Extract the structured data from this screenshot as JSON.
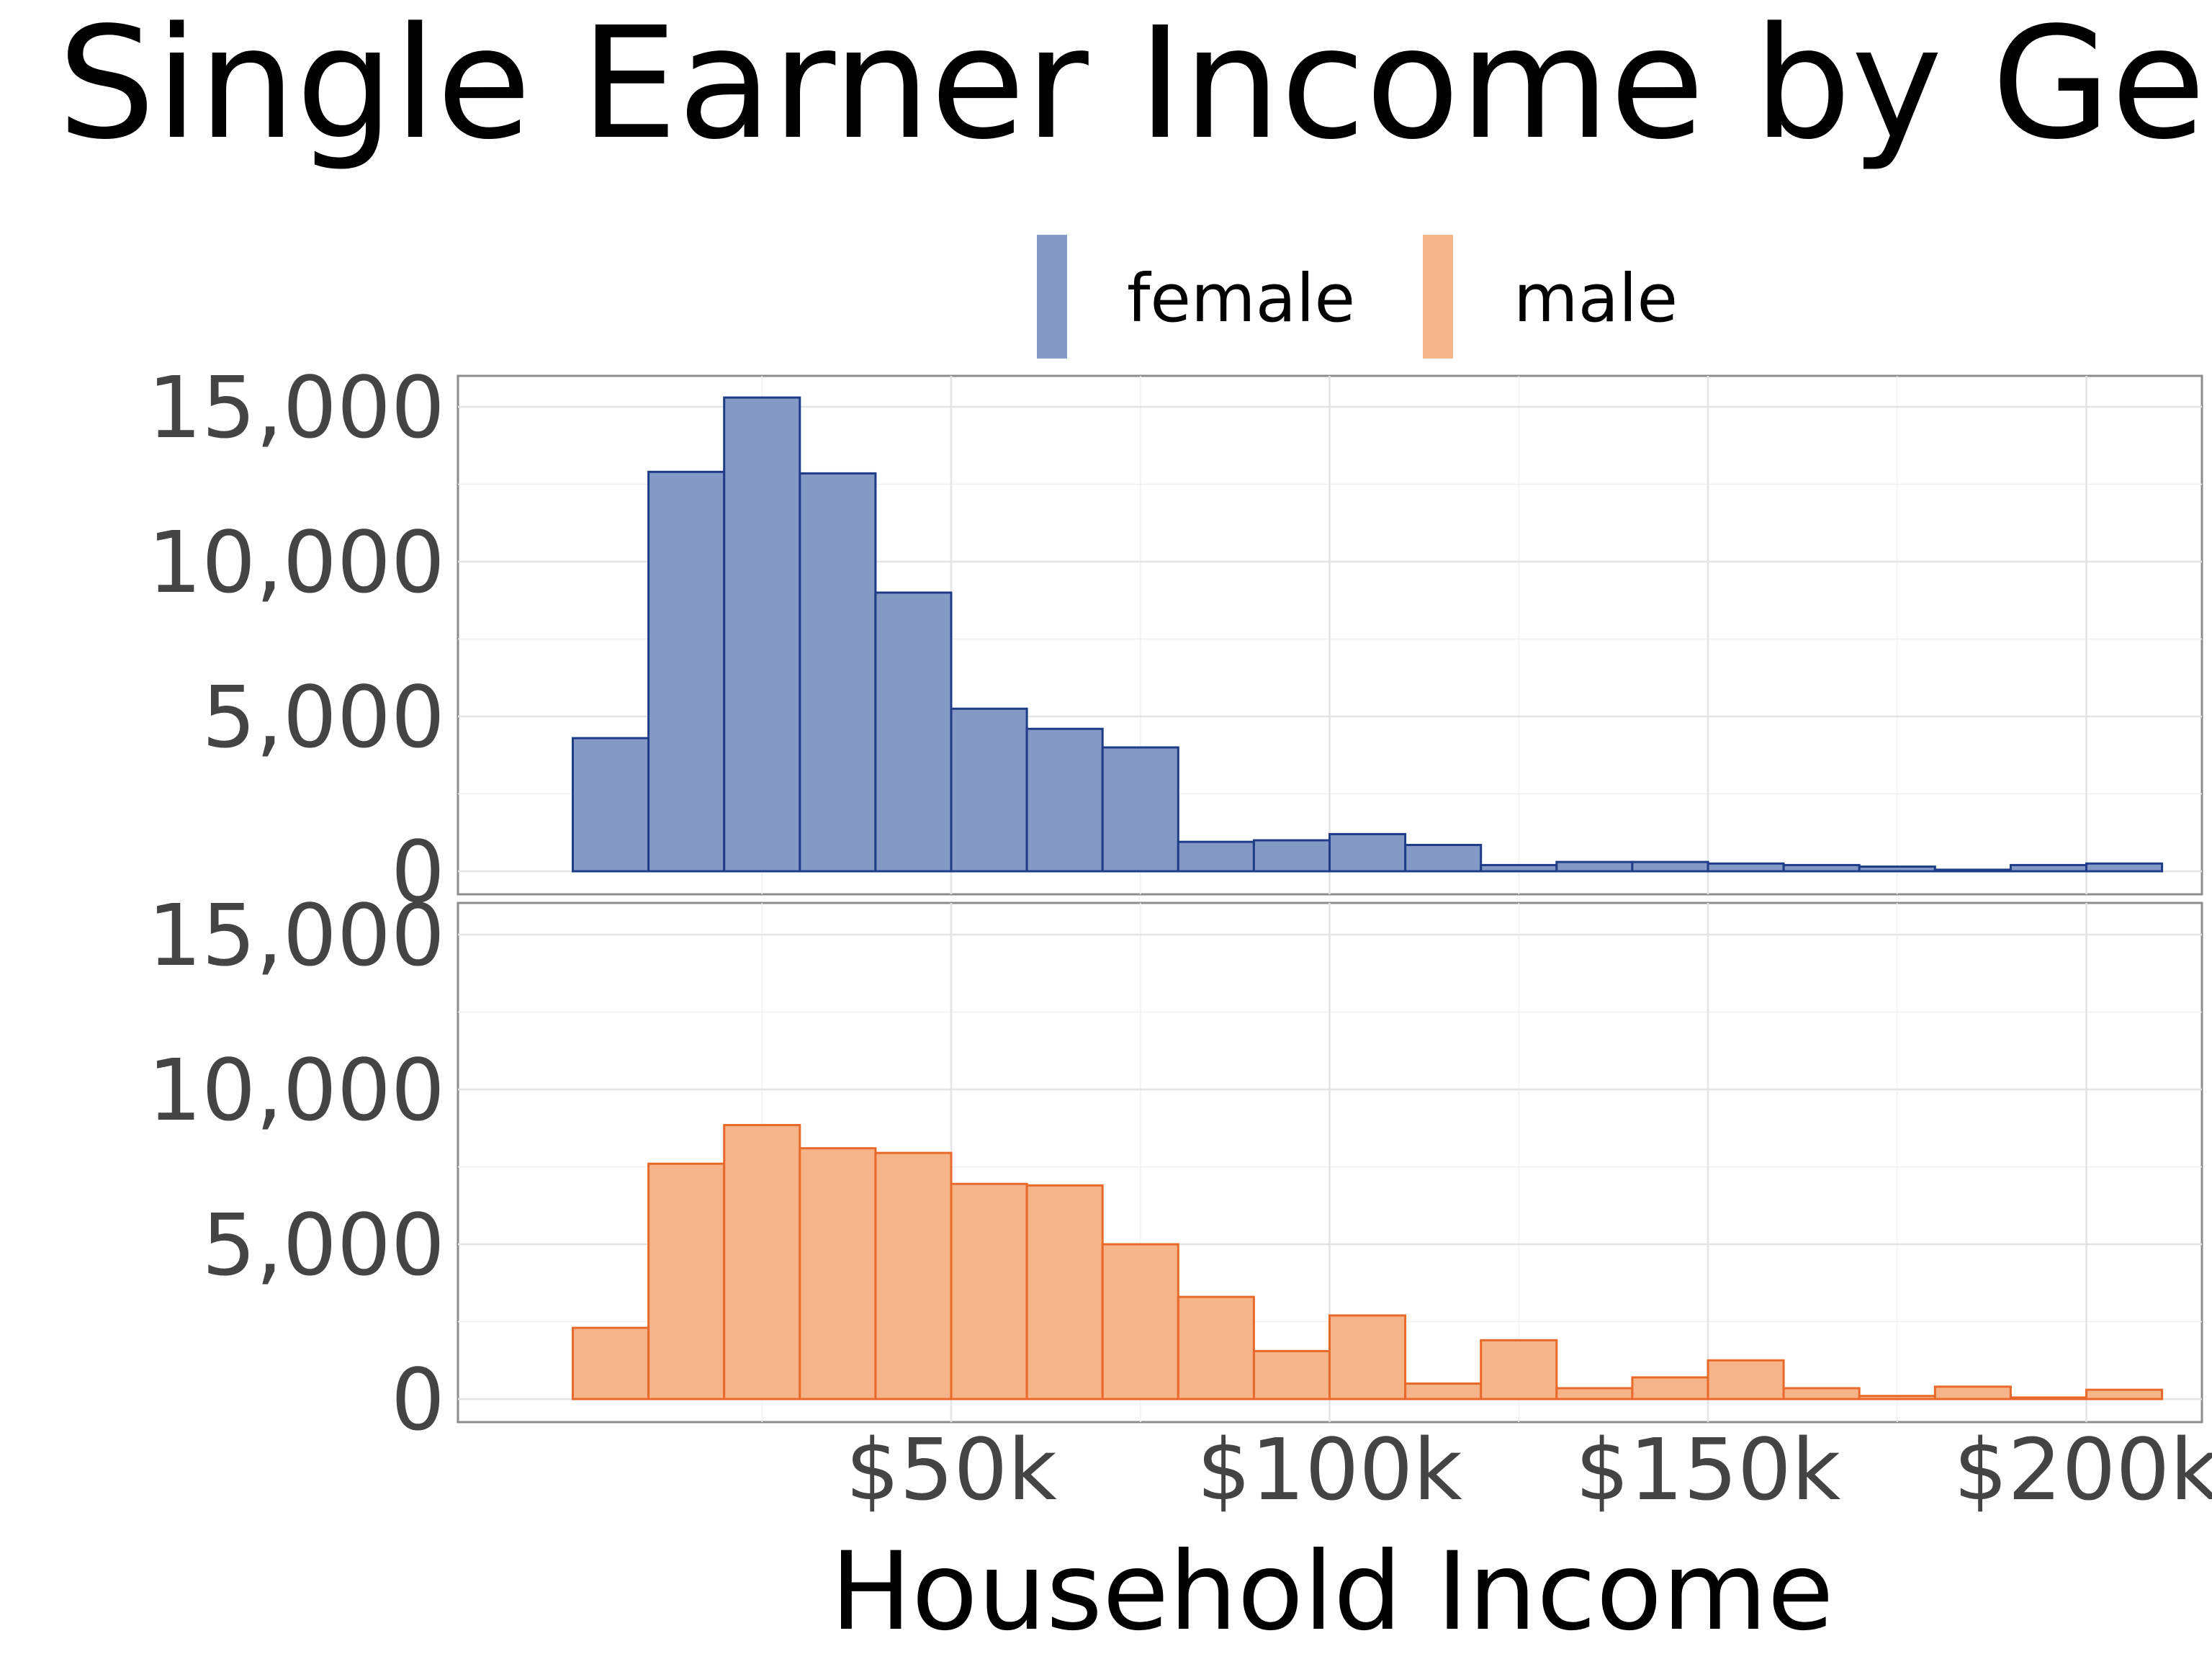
{
  "chart_data": {
    "type": "bar",
    "title": "Single Earner Income by Ge",
    "xlabel": "Household Income",
    "ylabel": "",
    "legend": {
      "position": "top",
      "entries": [
        {
          "label": "female",
          "color": "#8499c4"
        },
        {
          "label": "male",
          "color": "#f6b48a"
        }
      ]
    },
    "bin_width": 10000,
    "x_start": 0,
    "xlim": [
      0,
      210000
    ],
    "ylim": [
      0,
      15000
    ],
    "x_ticks": [
      {
        "value": 50000,
        "label": "$50k"
      },
      {
        "value": 100000,
        "label": "$100k"
      },
      {
        "value": 150000,
        "label": "$150k"
      },
      {
        "value": 200000,
        "label": "$200k"
      }
    ],
    "y_ticks": [
      {
        "value": 0,
        "label": "0"
      },
      {
        "value": 5000,
        "label": "5,000"
      },
      {
        "value": 10000,
        "label": "10,000"
      },
      {
        "value": 15000,
        "label": "15,000"
      }
    ],
    "grid": true,
    "series": [
      {
        "name": "female",
        "fill": "#8499c4",
        "stroke": "#1f3c88",
        "values": [
          4300,
          12900,
          15300,
          12850,
          9000,
          5250,
          4600,
          4000,
          950,
          1000,
          1200,
          850,
          200,
          300,
          300,
          250,
          200,
          150,
          50,
          200,
          250
        ]
      },
      {
        "name": "male",
        "fill": "#f6b48a",
        "stroke": "#e8692a",
        "values": [
          2300,
          7600,
          8850,
          8100,
          7950,
          6950,
          6900,
          5000,
          3300,
          1550,
          2700,
          500,
          1900,
          350,
          700,
          1250,
          350,
          100,
          400,
          50,
          300
        ]
      }
    ]
  }
}
